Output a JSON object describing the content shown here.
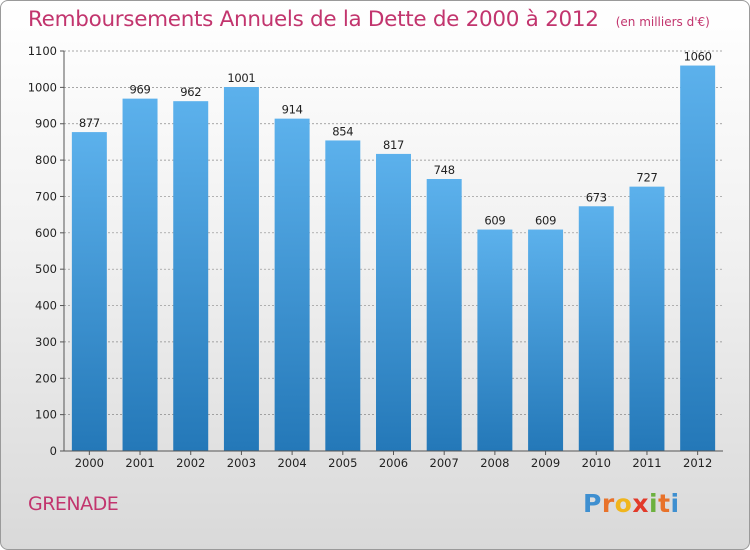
{
  "colors": {
    "title": "#c2356e",
    "bar_top": "#5cb1ec",
    "bar_bottom": "#2478b8",
    "grid": "#8a8a8a",
    "axis_text": "#222222"
  },
  "chart_data": {
    "type": "bar",
    "title": "Remboursements Annuels de la Dette de 2000 à 2012",
    "unit_label": "(en milliers d'€)",
    "categories": [
      "2000",
      "2001",
      "2002",
      "2003",
      "2004",
      "2005",
      "2006",
      "2007",
      "2008",
      "2009",
      "2010",
      "2011",
      "2012"
    ],
    "values": [
      877,
      969,
      962,
      1001,
      914,
      854,
      817,
      748,
      609,
      609,
      673,
      727,
      1060
    ],
    "ylim": [
      0,
      1100
    ],
    "yticks": [
      0,
      100,
      200,
      300,
      400,
      500,
      600,
      700,
      800,
      900,
      1000,
      1100
    ],
    "grid": true,
    "xlabel": "",
    "ylabel": ""
  },
  "commune_name": "GRENADE",
  "logo": {
    "text": "Proxiti",
    "letters": [
      "P",
      "r",
      "o",
      "x",
      "i",
      "t",
      "i"
    ]
  }
}
